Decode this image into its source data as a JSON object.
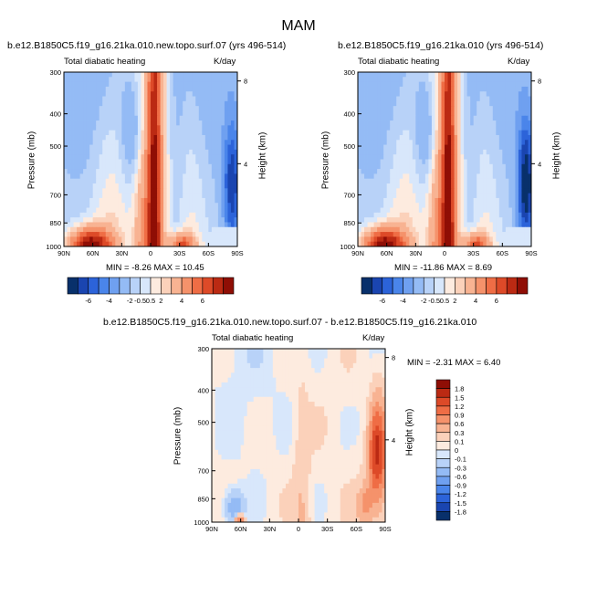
{
  "title": "MAM",
  "panels": [
    {
      "case": "b.e12.B1850C5.f19_g16.21ka.010.new.topo.surf.07 (yrs 496-514)",
      "variable": "Total diabatic heating",
      "units": "K/day",
      "ylabel_left": "Pressure (mb)",
      "ylabel_right": "Height (km)",
      "stats": "MIN = -8.26   MAX = 10.45"
    },
    {
      "case": "b.e12.B1850C5.f19_g16.21ka.010 (yrs 496-514)",
      "variable": "Total diabatic heating",
      "units": "K/day",
      "ylabel_left": "Pressure (mb)",
      "ylabel_right": "Height (km)",
      "stats": "MIN = -11.86   MAX =  8.69"
    },
    {
      "case": "b.e12.B1850C5.f19_g16.21ka.010.new.topo.surf.07 - b.e12.B1850C5.f19_g16.21ka.010",
      "variable": "Total diabatic heating",
      "units": "K/day",
      "ylabel_left": "Pressure (mb)",
      "ylabel_right": "Height (km)",
      "stats": "MIN = -2.31   MAX =  6.40"
    }
  ],
  "chart_data": {
    "type": "heatmap",
    "x_ticks": [
      "90N",
      "60N",
      "30N",
      "0",
      "30S",
      "60S",
      "90S"
    ],
    "y_ticks": [
      "300",
      "400",
      "500",
      "700",
      "850",
      "1000"
    ],
    "y_ticks_values": [
      300,
      400,
      500,
      700,
      850,
      1000
    ],
    "height_ticks": [
      "8",
      "4"
    ],
    "height_ticks_values": [
      8,
      4
    ],
    "colorbar_main": {
      "labels": [
        "-6",
        "-4",
        "-2",
        "-0.5",
        "0.5",
        "2",
        "4",
        "6"
      ],
      "colors": [
        "#08306b",
        "#1a45b0",
        "#2c63d9",
        "#4a85ea",
        "#6fa0f0",
        "#94bbf5",
        "#b8d2f8",
        "#d8e7fb",
        "#fdebdf",
        "#fbd1ba",
        "#f8b392",
        "#f5926b",
        "#ef6d45",
        "#dd4a28",
        "#bb2a13",
        "#8f0e05"
      ]
    },
    "colorbar_diff": {
      "labels": [
        "1.8",
        "1.5",
        "1.2",
        "0.9",
        "0.6",
        "0.3",
        "0.1",
        "0",
        "-0.1",
        "-0.3",
        "-0.6",
        "-0.9",
        "-1.2",
        "-1.5",
        "-1.8"
      ],
      "colors": [
        "#8f0e05",
        "#bb2a13",
        "#dd4a28",
        "#ef6d45",
        "#f5926b",
        "#f8b392",
        "#fbd1ba",
        "#fdebdf",
        "#d8e7fb",
        "#b8d2f8",
        "#94bbf5",
        "#6fa0f0",
        "#4a85ea",
        "#2c63d9",
        "#1a45b0",
        "#08306b"
      ]
    }
  }
}
